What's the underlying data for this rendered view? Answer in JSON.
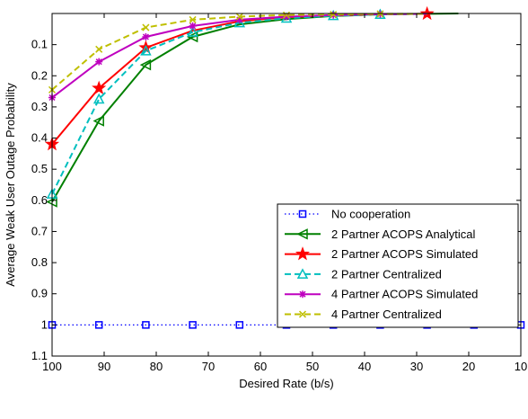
{
  "chart_data": {
    "type": "line",
    "xlabel": "Desired Rate (b/s)",
    "ylabel": "Average Weak User Outage Probability",
    "xlim": [
      100,
      10
    ],
    "ylim": [
      1.1,
      0
    ],
    "x_ticks": [
      100,
      90,
      80,
      70,
      60,
      50,
      40,
      30,
      20,
      10
    ],
    "y_ticks": [
      0.1,
      0.2,
      0.3,
      0.4,
      0.5,
      0.6,
      0.7,
      0.8,
      0.9,
      1,
      1.1
    ],
    "x_reversed": true,
    "y_reversed": true,
    "grid": false,
    "legend_position": "bottom-right",
    "series": [
      {
        "name": "No cooperation",
        "color": "#0000ff",
        "line": "dotted",
        "marker": "square",
        "x": [
          100,
          91,
          82,
          73,
          64,
          55,
          46,
          37,
          28,
          19,
          10
        ],
        "y": [
          1,
          1,
          1,
          1,
          1,
          1,
          1,
          1,
          1,
          1,
          1
        ]
      },
      {
        "name": "2 Partner ACOPS Analytical",
        "color": "#008000",
        "line": "solid",
        "marker": "triangle-left",
        "x": [
          100,
          91,
          82,
          73,
          64,
          55,
          46,
          37,
          28,
          22
        ],
        "y": [
          0.605,
          0.345,
          0.165,
          0.075,
          0.035,
          0.018,
          0.008,
          0.003,
          0.001,
          0
        ],
        "marker_x": [
          100,
          91,
          82,
          73
        ]
      },
      {
        "name": "2 Partner ACOPS Simulated",
        "color": "#ff0000",
        "line": "solid",
        "marker": "star",
        "x": [
          100,
          91,
          82,
          73,
          64,
          55,
          46,
          37,
          28
        ],
        "y": [
          0.42,
          0.24,
          0.11,
          0.055,
          0.025,
          0.012,
          0.006,
          0.002,
          0.001
        ],
        "marker_x": [
          100,
          91,
          82,
          28
        ]
      },
      {
        "name": "2 Partner Centralized",
        "color": "#00bfbf",
        "line": "dashed",
        "marker": "triangle-up",
        "x": [
          100,
          91,
          82,
          73,
          64,
          55,
          46,
          37,
          28
        ],
        "y": [
          0.58,
          0.275,
          0.12,
          0.06,
          0.03,
          0.015,
          0.007,
          0.003,
          0.001
        ],
        "marker_x": [
          100,
          91,
          82,
          73,
          64,
          55,
          46,
          37
        ]
      },
      {
        "name": "4 Partner ACOPS Simulated",
        "color": "#bf00bf",
        "line": "solid",
        "marker": "asterisk",
        "x": [
          100,
          91,
          82,
          73,
          64,
          55,
          46,
          37,
          28
        ],
        "y": [
          0.27,
          0.155,
          0.075,
          0.04,
          0.02,
          0.01,
          0.005,
          0.002,
          0.001
        ],
        "marker_x": [
          100,
          91,
          82,
          73,
          64,
          55,
          46,
          37
        ]
      },
      {
        "name": "4 Partner Centralized",
        "color": "#bfbf00",
        "line": "dashed",
        "marker": "x",
        "x": [
          100,
          91,
          82,
          73,
          64,
          55,
          46,
          37,
          28
        ],
        "y": [
          0.245,
          0.115,
          0.045,
          0.02,
          0.01,
          0.005,
          0.003,
          0.001,
          0.001
        ],
        "marker_x": [
          100,
          91,
          82,
          73,
          64,
          55,
          46,
          37
        ]
      }
    ]
  }
}
